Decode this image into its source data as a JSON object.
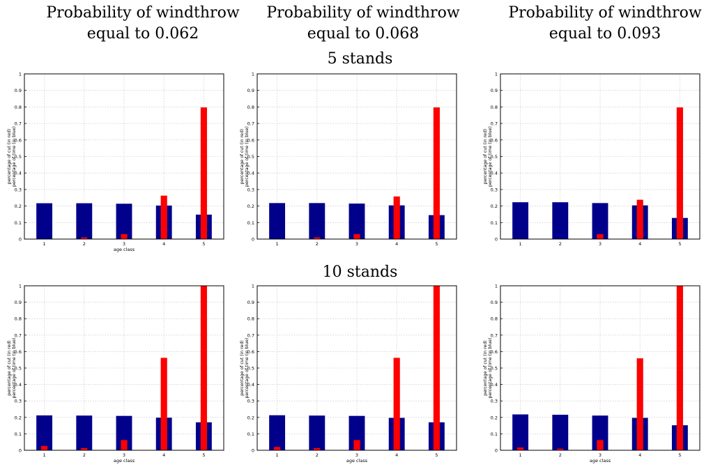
{
  "column_titles": [
    {
      "line1": "Probability of windthrow",
      "line2": "equal to 0.062"
    },
    {
      "line1": "Probability of windthrow",
      "line2": "equal to 0.068"
    },
    {
      "line1": "Probability of windthrow",
      "line2": "equal to 0.093"
    }
  ],
  "row_titles": [
    "5 stands",
    "10 stands"
  ],
  "colors": {
    "blue": "#00008b",
    "red": "#ff0000",
    "grid": "#bdbdbd"
  },
  "chart_data": [
    {
      "type": "bar",
      "panel": "5 stands / 0.062",
      "categories": [
        "1",
        "2",
        "3",
        "4",
        "5"
      ],
      "series": [
        {
          "name": "percentage of time",
          "values": [
            0.217,
            0.217,
            0.214,
            0.203,
            0.148
          ]
        },
        {
          "name": "percentage of cut",
          "values": [
            0.0,
            0.01,
            0.03,
            0.263,
            0.797
          ]
        }
      ],
      "ylabel": [
        "percentage of cut (in red)",
        "percentage of time (in blue)"
      ],
      "xlabel": "age class",
      "ylim": [
        0,
        1
      ],
      "grid": true
    },
    {
      "type": "bar",
      "panel": "5 stands / 0.068",
      "categories": [
        "1",
        "2",
        "3",
        "4",
        "5"
      ],
      "series": [
        {
          "name": "percentage of time",
          "values": [
            0.218,
            0.218,
            0.215,
            0.204,
            0.145
          ]
        },
        {
          "name": "percentage of cut",
          "values": [
            0.0,
            0.01,
            0.03,
            0.258,
            0.797
          ]
        }
      ],
      "ylabel": [
        "percentage of cut (in red)",
        "percentage of time (in blue)"
      ],
      "xlabel": "",
      "ylim": [
        0,
        1
      ],
      "grid": true
    },
    {
      "type": "bar",
      "panel": "5 stands / 0.093",
      "categories": [
        "1",
        "2",
        "3",
        "4",
        "5"
      ],
      "series": [
        {
          "name": "percentage of time",
          "values": [
            0.223,
            0.223,
            0.218,
            0.204,
            0.128
          ]
        },
        {
          "name": "percentage of cut",
          "values": [
            0.0,
            0.0,
            0.03,
            0.238,
            0.797
          ]
        }
      ],
      "ylabel": [
        "percentage of cut (in red)",
        "percentage of time (in blue)"
      ],
      "xlabel": "",
      "ylim": [
        0,
        1
      ],
      "grid": true
    },
    {
      "type": "bar",
      "panel": "10 stands / 0.062",
      "categories": [
        "1",
        "2",
        "3",
        "4",
        "5"
      ],
      "series": [
        {
          "name": "percentage of time",
          "values": [
            0.212,
            0.211,
            0.209,
            0.198,
            0.17
          ]
        },
        {
          "name": "percentage of cut",
          "values": [
            0.026,
            0.013,
            0.062,
            0.562,
            1.0
          ]
        }
      ],
      "ylabel": [
        "percentage of cut (in red)",
        "percentage of time (in blue)"
      ],
      "xlabel": "age class",
      "ylim": [
        0,
        1
      ],
      "grid": true
    },
    {
      "type": "bar",
      "panel": "10 stands / 0.068",
      "categories": [
        "1",
        "2",
        "3",
        "4",
        "5"
      ],
      "series": [
        {
          "name": "percentage of time",
          "values": [
            0.213,
            0.211,
            0.209,
            0.197,
            0.17
          ]
        },
        {
          "name": "percentage of cut",
          "values": [
            0.02,
            0.013,
            0.062,
            0.562,
            1.0
          ]
        }
      ],
      "ylabel": [
        "percentage of cut (in red)",
        "percentage of time (in blue)"
      ],
      "xlabel": "age class",
      "ylim": [
        0,
        1
      ],
      "grid": true
    },
    {
      "type": "bar",
      "panel": "10 stands / 0.093",
      "categories": [
        "1",
        "2",
        "3",
        "4",
        "5"
      ],
      "series": [
        {
          "name": "percentage of time",
          "values": [
            0.218,
            0.216,
            0.211,
            0.197,
            0.152
          ]
        },
        {
          "name": "percentage of cut",
          "values": [
            0.017,
            0.01,
            0.062,
            0.559,
            1.0
          ]
        }
      ],
      "ylabel": [
        "percentage of cut (in red)",
        "percentage of time (in blue)"
      ],
      "xlabel": "age class",
      "ylim": [
        0,
        1
      ],
      "grid": true
    }
  ]
}
